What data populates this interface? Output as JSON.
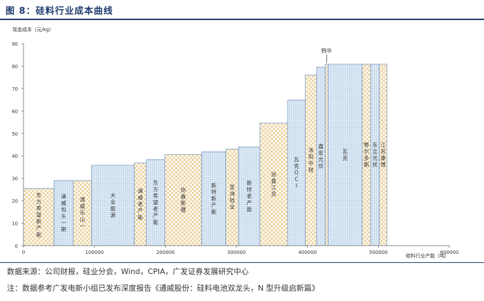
{
  "figure": {
    "title": "图 8：硅料行业成本曲线",
    "source": "数据来源：公司财报，硅业分会，Wind，CPIA，广发证券发展研究中心",
    "note": "注：数据参考广发电新小组已发布深度报告《通威股份：硅料电池双龙头，N 型升级启新篇》"
  },
  "colors": {
    "hatch_line": "#e8c98a",
    "blue_fill": "#dbe8f4",
    "blue_dot": "#9fc0e0",
    "bar_stroke": "#7a9cc4",
    "axis": "#888888"
  },
  "chart_data": {
    "type": "bar",
    "subtype": "cost-curve",
    "ylabel": "现金成本（元/kg）",
    "xlabel": "硅料行业产能（吨）",
    "ylim": [
      0,
      90
    ],
    "xlim": [
      0,
      600000
    ],
    "yticks": [
      0,
      10,
      20,
      30,
      40,
      50,
      60,
      70,
      80,
      90
    ],
    "xticks": [
      0,
      100000,
      200000,
      300000,
      400000,
      500000,
      600000
    ],
    "grid": false,
    "callout_label": "韩华",
    "bars": [
      {
        "label": "东方希望新产能",
        "x0": 0,
        "x1": 43000,
        "value": 25.5,
        "style": "hatch"
      },
      {
        "label": "通威包头一期",
        "x0": 43000,
        "x1": 70000,
        "value": 29,
        "style": "dots"
      },
      {
        "label": "通威乐山一",
        "x0": 70000,
        "x1": 96000,
        "value": 29,
        "style": "hatch"
      },
      {
        "label": "大全能源",
        "x0": 96000,
        "x1": 156000,
        "value": 35.8,
        "style": "dots"
      },
      {
        "label": "通威老产能",
        "x0": 156000,
        "x1": 173000,
        "value": 36.8,
        "style": "hatch"
      },
      {
        "label": "东方希望老产能",
        "x0": 173000,
        "x1": 199000,
        "value": 38.3,
        "style": "dots"
      },
      {
        "label": "协鑫新疆",
        "x0": 199000,
        "x1": 251000,
        "value": 40.6,
        "style": "hatch"
      },
      {
        "label": "新特新产能",
        "x0": 251000,
        "x1": 285000,
        "value": 41.8,
        "style": "dots"
      },
      {
        "label": "亚洲硅业",
        "x0": 285000,
        "x1": 303000,
        "value": 43,
        "style": "hatch"
      },
      {
        "label": "新特老产能",
        "x0": 303000,
        "x1": 333000,
        "value": 44,
        "style": "dots"
      },
      {
        "label": "协鑫江苏",
        "x0": 333000,
        "x1": 372000,
        "value": 54.6,
        "style": "hatch"
      },
      {
        "label": "瓦克OCI",
        "x0": 372000,
        "x1": 397000,
        "value": 64.8,
        "style": "dots"
      },
      {
        "label": "洛阳中硅",
        "x0": 397000,
        "x1": 413000,
        "value": 76,
        "style": "hatch"
      },
      {
        "label": "鑫宏光伏",
        "x0": 413000,
        "x1": 425000,
        "value": 79.5,
        "style": "dots"
      },
      {
        "label": "韩华",
        "x0": 425000,
        "x1": 429000,
        "value": 80.8,
        "style": "hatch"
      },
      {
        "label": "瓦克",
        "x0": 429000,
        "x1": 477000,
        "value": 80.8,
        "style": "dots"
      },
      {
        "label": "鄂尔多斯",
        "x0": 477000,
        "x1": 489000,
        "value": 80.8,
        "style": "hatch"
      },
      {
        "label": "东立光伏",
        "x0": 489000,
        "x1": 501000,
        "value": 80.8,
        "style": "dots"
      },
      {
        "label": "江苏康博",
        "x0": 501000,
        "x1": 512000,
        "value": 80.8,
        "style": "hatch"
      }
    ]
  }
}
